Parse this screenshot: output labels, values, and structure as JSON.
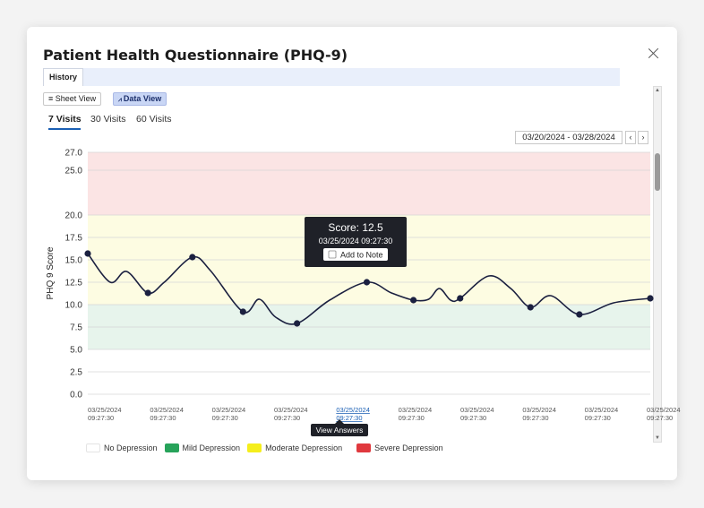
{
  "dialog": {
    "title": "Patient Health Questionnaire (PHQ-9)",
    "history_tab": "History",
    "sheet_view": "Sheet View",
    "data_view": "Data View",
    "visit_tabs": [
      "7 Visits",
      "30 Visits",
      "60 Visits"
    ],
    "date_range": "03/20/2024 - 03/28/2024",
    "prev": "‹",
    "next": "›"
  },
  "tooltip": {
    "score": "Score: 12.5",
    "datetime": "03/25/2024 09:27:30",
    "add_to_note": "Add to Note"
  },
  "hover_label": "View Answers",
  "chart_data": {
    "type": "line",
    "ylabel": "PHQ 9 Score",
    "ylim": [
      0,
      27
    ],
    "y_ticks": [
      "27.0",
      "25.0",
      "20.0",
      "17.5",
      "15.0",
      "12.5",
      "10.0",
      "7.5",
      "5.0",
      "2.5",
      "0.0"
    ],
    "y_tick_values": [
      27,
      25,
      20,
      17.5,
      15,
      12.5,
      10,
      7.5,
      5,
      2.5,
      0
    ],
    "x_dates": [
      "03/25/2024",
      "03/25/2024",
      "03/25/2024",
      "03/25/2024",
      "03/25/2024",
      "03/25/2024",
      "03/25/2024",
      "03/25/2024",
      "03/25/2024",
      "03/25/2024"
    ],
    "x_times": [
      "09:27:30",
      "09:27:30",
      "09:27:30",
      "09:27:30",
      "09:27:30",
      "09:27:30",
      "09:27:30",
      "09:27:30",
      "09:27:30",
      "09:27:30"
    ],
    "active_x_index": 4,
    "bands": [
      {
        "name": "No Depression",
        "from": 0,
        "to": 5,
        "color": "#ffffff"
      },
      {
        "name": "Mild Depression",
        "from": 5,
        "to": 10,
        "color": "#27a35a"
      },
      {
        "name": "Moderate Depression",
        "from": 10,
        "to": 20,
        "color": "#f5ee1c"
      },
      {
        "name": "Severe Depression",
        "from": 20,
        "to": 27,
        "color": "#e0393e"
      }
    ],
    "points": [
      {
        "t": 0.0,
        "y": 15.7
      },
      {
        "t": 0.107,
        "y": 11.3
      },
      {
        "t": 0.186,
        "y": 15.3
      },
      {
        "t": 0.276,
        "y": 9.2
      },
      {
        "t": 0.372,
        "y": 7.9
      },
      {
        "t": 0.496,
        "y": 12.5
      },
      {
        "t": 0.579,
        "y": 10.5
      },
      {
        "t": 0.662,
        "y": 10.7
      },
      {
        "t": 0.787,
        "y": 9.7
      },
      {
        "t": 0.874,
        "y": 8.9
      },
      {
        "t": 1.0,
        "y": 10.7
      }
    ],
    "curve_points": [
      {
        "t": 0.0,
        "y": 15.7
      },
      {
        "t": 0.04,
        "y": 12.5
      },
      {
        "t": 0.069,
        "y": 13.7
      },
      {
        "t": 0.107,
        "y": 11.3
      },
      {
        "t": 0.136,
        "y": 12.5
      },
      {
        "t": 0.186,
        "y": 15.3
      },
      {
        "t": 0.218,
        "y": 13.8
      },
      {
        "t": 0.276,
        "y": 9.2
      },
      {
        "t": 0.305,
        "y": 10.6
      },
      {
        "t": 0.334,
        "y": 8.6
      },
      {
        "t": 0.372,
        "y": 7.9
      },
      {
        "t": 0.43,
        "y": 10.5
      },
      {
        "t": 0.496,
        "y": 12.5
      },
      {
        "t": 0.54,
        "y": 11.3
      },
      {
        "t": 0.579,
        "y": 10.5
      },
      {
        "t": 0.606,
        "y": 10.6
      },
      {
        "t": 0.625,
        "y": 11.8
      },
      {
        "t": 0.645,
        "y": 10.5
      },
      {
        "t": 0.662,
        "y": 10.7
      },
      {
        "t": 0.713,
        "y": 13.2
      },
      {
        "t": 0.752,
        "y": 11.8
      },
      {
        "t": 0.787,
        "y": 9.7
      },
      {
        "t": 0.823,
        "y": 11.0
      },
      {
        "t": 0.874,
        "y": 8.9
      },
      {
        "t": 0.935,
        "y": 10.2
      },
      {
        "t": 1.0,
        "y": 10.7
      }
    ]
  },
  "colors": {
    "accent": "#1a5fb4",
    "line": "#1b2040",
    "band_severe_fill": "#fbe4e4",
    "band_moderate_fill": "#fdfce2",
    "band_mild_fill": "#e7f4ec"
  }
}
